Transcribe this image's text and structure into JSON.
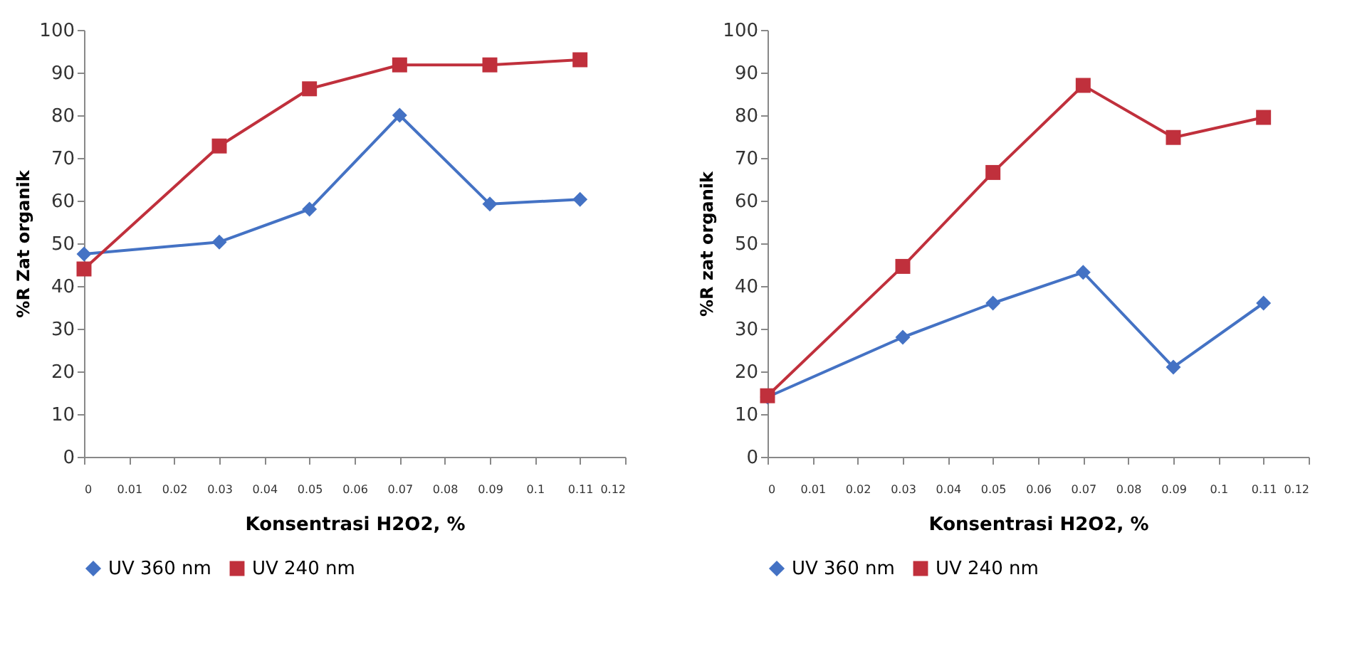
{
  "chart_data": [
    {
      "type": "line",
      "xlabel": "Konsentrasi H2O2, %",
      "ylabel": "%R Zat organik",
      "x": [
        0,
        0.03,
        0.05,
        0.07,
        0.09,
        0.11
      ],
      "xlim": [
        0,
        0.12
      ],
      "xticks": [
        0,
        0.01,
        0.02,
        0.03,
        0.04,
        0.05,
        0.06,
        0.07,
        0.08,
        0.09,
        0.1,
        0.11,
        0.12
      ],
      "ylim": [
        0,
        100
      ],
      "yticks": [
        0,
        10,
        20,
        30,
        40,
        50,
        60,
        70,
        80,
        90,
        100
      ],
      "grid": false,
      "legend": "bottom",
      "line_style": "solid",
      "series": [
        {
          "name": "UV 360 nm",
          "color": "#4472c4",
          "marker": "diamond",
          "values": [
            47.5,
            50.3,
            58,
            80,
            59.2,
            60.3
          ]
        },
        {
          "name": "UV 240 nm",
          "color": "#c0303c",
          "marker": "square",
          "values": [
            44,
            72.8,
            86.2,
            91.8,
            91.8,
            93
          ]
        }
      ]
    },
    {
      "type": "line",
      "xlabel": "Konsentrasi H2O2, %",
      "ylabel": "%R zat organik",
      "x": [
        0,
        0.03,
        0.05,
        0.07,
        0.09,
        0.11
      ],
      "xlim": [
        0,
        0.12
      ],
      "xticks": [
        0,
        0.01,
        0.02,
        0.03,
        0.04,
        0.05,
        0.06,
        0.07,
        0.08,
        0.09,
        0.1,
        0.11,
        0.12
      ],
      "ylim": [
        0,
        100
      ],
      "yticks": [
        0,
        10,
        20,
        30,
        40,
        50,
        60,
        70,
        80,
        90,
        100
      ],
      "grid": false,
      "legend": "bottom",
      "line_style": "solid",
      "series": [
        {
          "name": "UV 360 nm",
          "color": "#4472c4",
          "marker": "diamond",
          "values": [
            14,
            28,
            36,
            43.2,
            21,
            36
          ]
        },
        {
          "name": "UV 240 nm",
          "color": "#c0303c",
          "marker": "square",
          "values": [
            14.3,
            44.6,
            66.6,
            87,
            74.8,
            79.5
          ]
        }
      ]
    }
  ]
}
